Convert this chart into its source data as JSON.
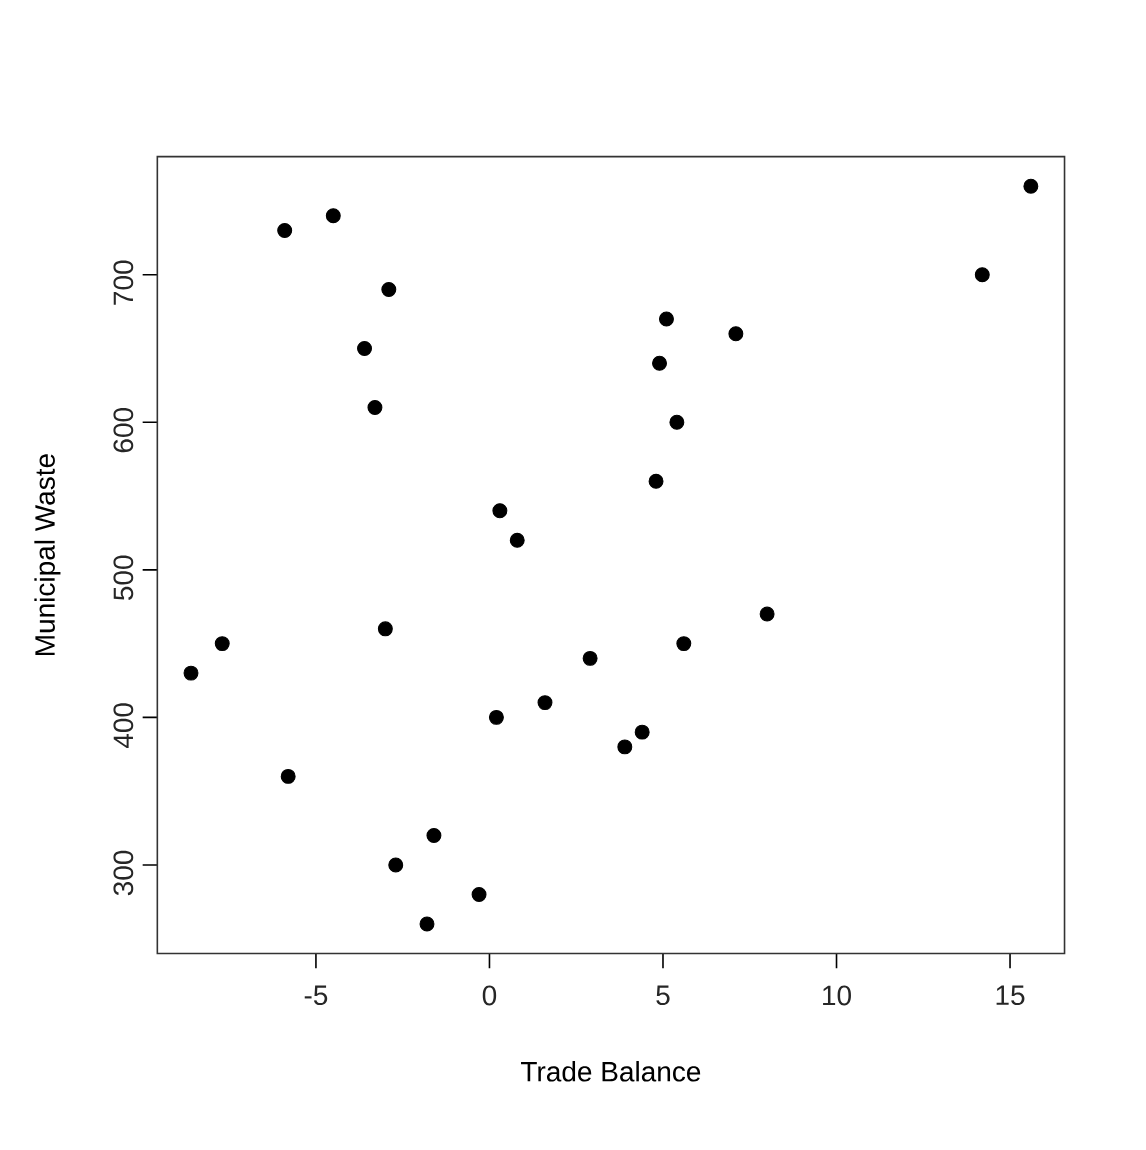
{
  "chart_data": {
    "type": "scatter",
    "xlabel": "Trade Balance",
    "ylabel": "Municipal Waste",
    "x": [
      -5.9,
      -4.5,
      -2.9,
      -3.6,
      -3.3,
      0.3,
      0.8,
      -3.0,
      -8.6,
      -7.7,
      -5.8,
      0.2,
      1.6,
      2.9,
      -1.6,
      -2.7,
      -0.3,
      -1.8,
      3.9,
      4.4,
      5.6,
      8.0,
      4.8,
      5.4,
      4.9,
      5.1,
      7.1,
      14.2,
      15.6
    ],
    "values": [
      730,
      740,
      690,
      650,
      610,
      540,
      520,
      460,
      430,
      450,
      360,
      400,
      410,
      440,
      320,
      300,
      280,
      260,
      380,
      390,
      450,
      470,
      560,
      600,
      640,
      670,
      660,
      700,
      760
    ],
    "color": "#000000",
    "marker": "circle",
    "xlim": [
      -9.57,
      16.57
    ],
    "ylim": [
      240,
      780
    ],
    "xticks": [
      -5,
      0,
      5,
      10,
      15
    ],
    "yticks": [
      300,
      400,
      500,
      600,
      700
    ]
  }
}
